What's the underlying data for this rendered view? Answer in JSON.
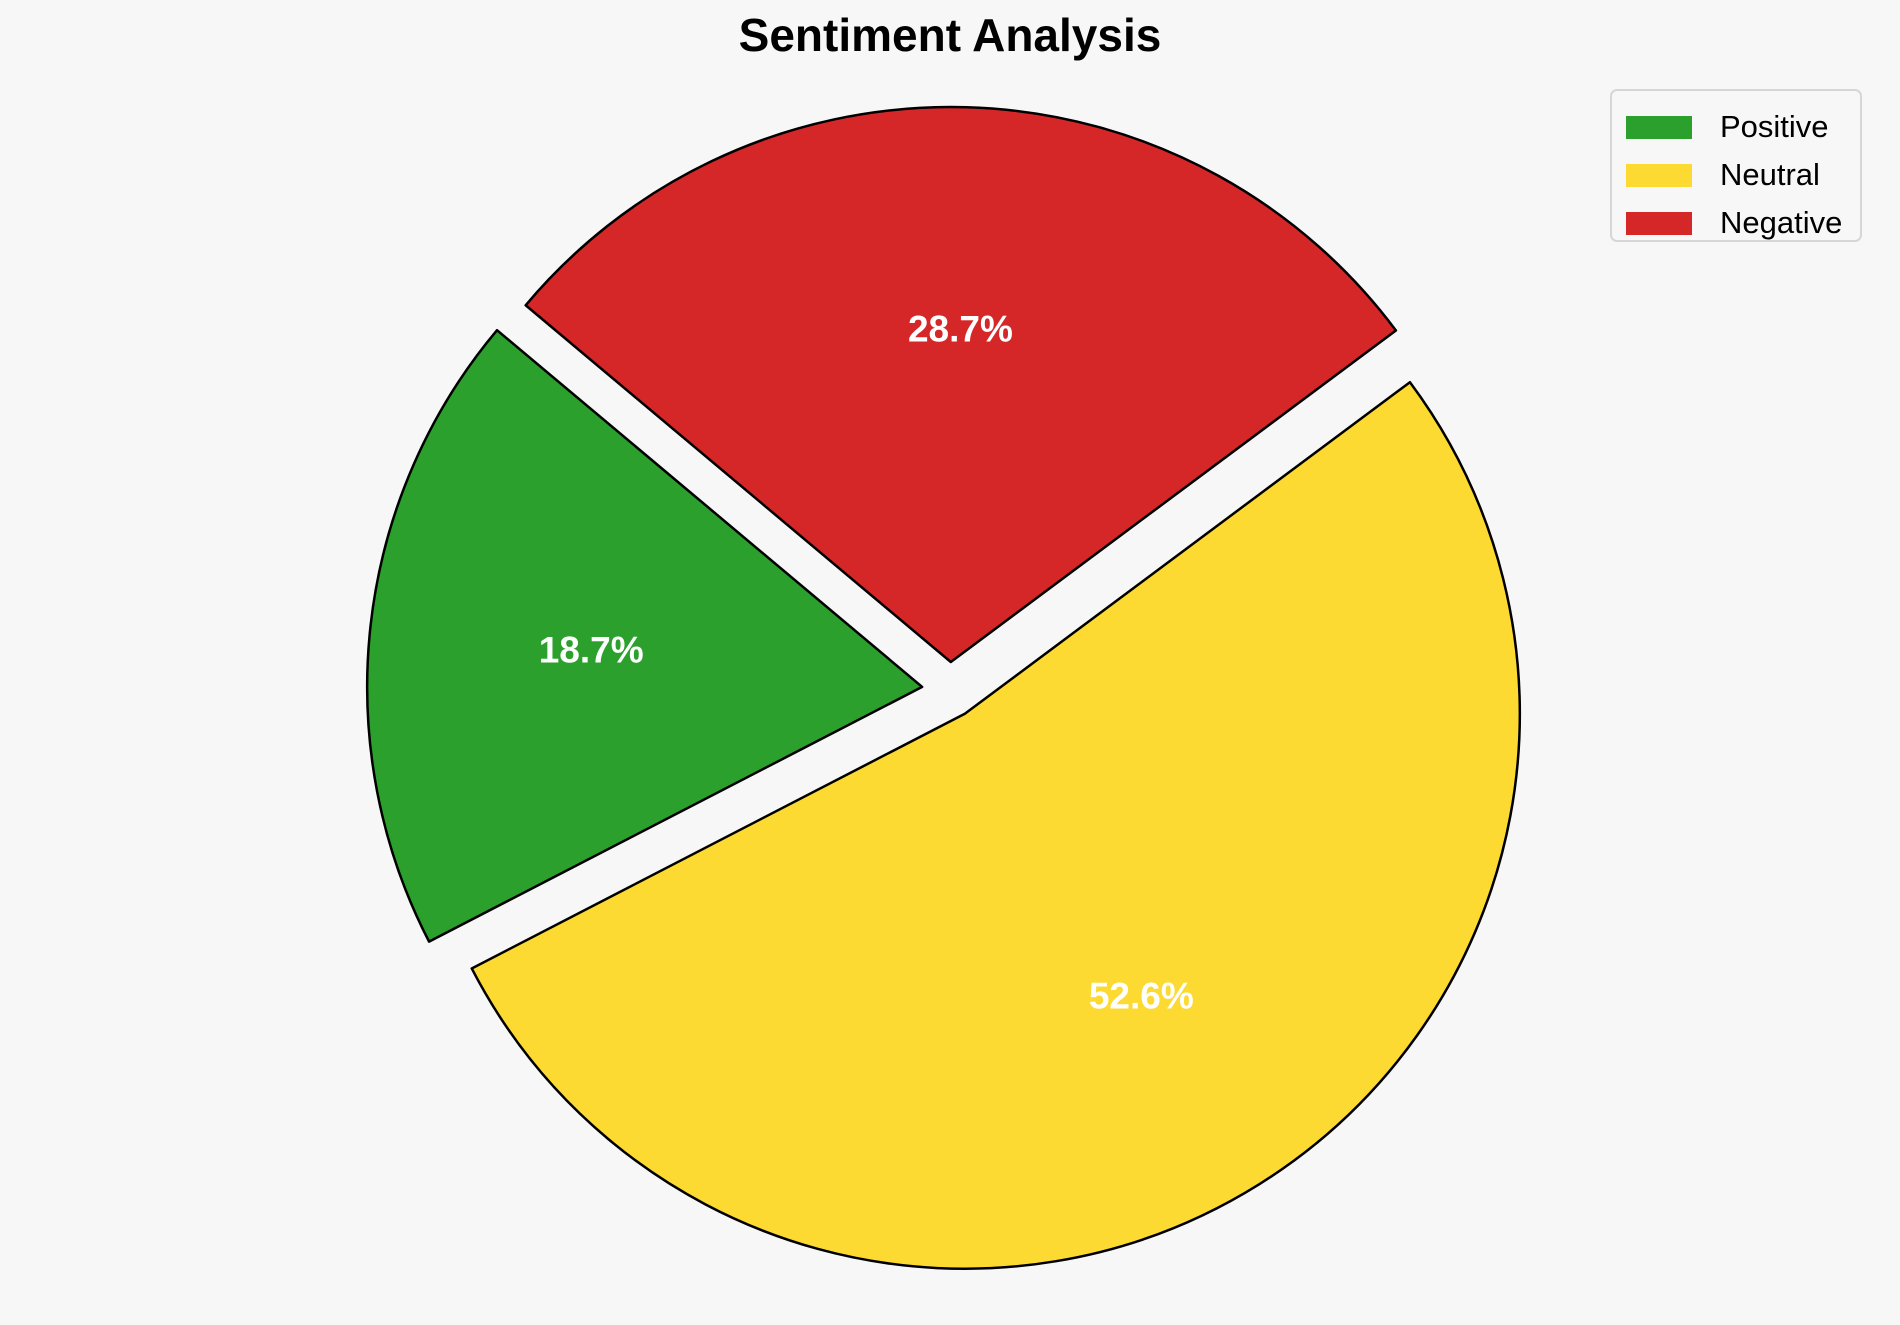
{
  "chart_data": {
    "type": "pie",
    "title": "Sentiment Analysis",
    "categories": [
      "Positive",
      "Neutral",
      "Negative"
    ],
    "values": [
      18.7,
      52.6,
      28.7
    ],
    "labels": [
      "18.7%",
      "52.6%",
      "28.7%"
    ],
    "colors": [
      "#2ca02c",
      "#fdda32",
      "#d62728"
    ],
    "exploded": true,
    "legend_position": "top-right"
  },
  "legend": {
    "items": [
      {
        "label": "Positive",
        "color": "#2ca02c"
      },
      {
        "label": "Neutral",
        "color": "#fdda32"
      },
      {
        "label": "Negative",
        "color": "#d62728"
      }
    ]
  }
}
